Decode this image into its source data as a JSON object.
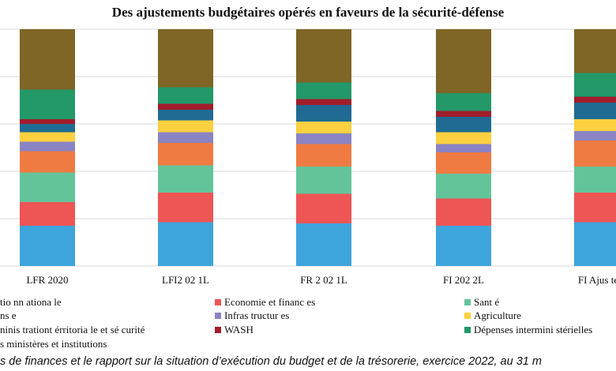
{
  "chart_data": {
    "type": "bar",
    "stacked": true,
    "title": "Des ajustements budgétaires opérés en faveurs de la sécurité-défense",
    "categories": [
      "LFR 2020",
      "LFI2 02 1L",
      "FR 2 02 1L",
      "FI 202 2L",
      "FI Ajus té e"
    ],
    "ylim": [
      0,
      100
    ],
    "grid": true,
    "legend_position": "bottom",
    "colors": [
      "#3da5dc",
      "#ee5555",
      "#63c49a",
      "#f07b42",
      "#8a84c4",
      "#fcd03f",
      "#1f6b93",
      "#a11d2a",
      "#239869",
      "#7f6526"
    ],
    "series": [
      {
        "name": "tio nn ationa le",
        "values": [
          17,
          18.5,
          18,
          17,
          18.5
        ]
      },
      {
        "name": "Economie  et financ es",
        "values": [
          10,
          12.5,
          12.5,
          11.5,
          12.5
        ]
      },
      {
        "name": "Sant é",
        "values": [
          12.5,
          11.5,
          11.5,
          10.5,
          11
        ]
      },
      {
        "name": "ns e",
        "values": [
          9,
          9.5,
          9.5,
          9,
          11
        ]
      },
      {
        "name": "Infras tructur es",
        "values": [
          4,
          4.5,
          4.5,
          3.5,
          4
        ]
      },
      {
        "name": "Agriculture",
        "values": [
          4,
          5,
          5,
          5,
          5
        ]
      },
      {
        "name": "ninis trationt érritoria le  et  sé curité",
        "values": [
          3.5,
          4.5,
          7,
          6.5,
          7
        ]
      },
      {
        "name": "WASH",
        "values": [
          2,
          2.5,
          2.5,
          2.5,
          2.5
        ]
      },
      {
        "name": "Dépenses intermini  stérielles",
        "values": [
          12.5,
          7,
          7,
          7.5,
          10
        ]
      },
      {
        "name": "s  ministères  et institutions",
        "values": [
          25.5,
          24.5,
          22.5,
          27,
          18.5
        ]
      }
    ]
  },
  "source_note": "s de finances et le rapport sur la situation d’exécution du budget et de la trésorerie, exercice 2022, au 31 m"
}
